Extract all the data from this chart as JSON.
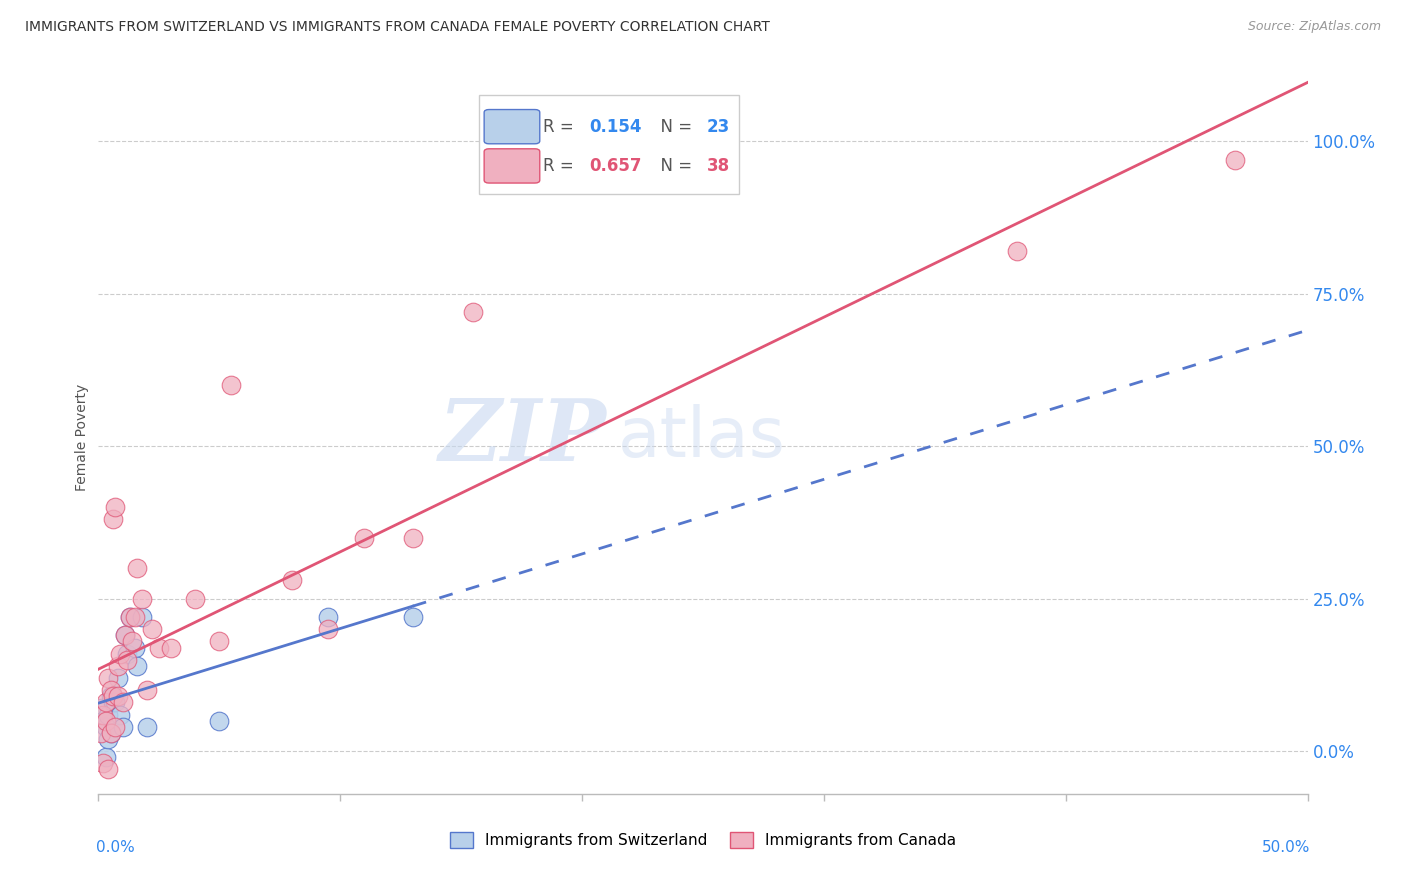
{
  "title": "IMMIGRANTS FROM SWITZERLAND VS IMMIGRANTS FROM CANADA FEMALE POVERTY CORRELATION CHART",
  "source": "Source: ZipAtlas.com",
  "ylabel": "Female Poverty",
  "ytick_labels": [
    "0.0%",
    "25.0%",
    "50.0%",
    "75.0%",
    "100.0%"
  ],
  "ytick_values": [
    0.0,
    0.25,
    0.5,
    0.75,
    1.0
  ],
  "xlim": [
    0.0,
    0.5
  ],
  "ylim": [
    -0.07,
    1.1
  ],
  "r_swiss": "0.154",
  "n_swiss": "23",
  "r_canada": "0.657",
  "n_canada": "38",
  "color_switzerland": "#b8d0ea",
  "color_canada": "#f0b0c0",
  "color_switzerland_line": "#5577cc",
  "color_canada_line": "#e05575",
  "watermark_zip": "ZIP",
  "watermark_atlas": "atlas",
  "legend_label_swiss": "Immigrants from Switzerland",
  "legend_label_canada": "Immigrants from Canada",
  "switzerland_x": [
    0.001,
    0.002,
    0.003,
    0.003,
    0.004,
    0.004,
    0.005,
    0.005,
    0.006,
    0.007,
    0.008,
    0.009,
    0.01,
    0.011,
    0.012,
    0.013,
    0.015,
    0.016,
    0.018,
    0.02,
    0.05,
    0.095,
    0.13
  ],
  "switzerland_y": [
    0.07,
    0.05,
    0.04,
    -0.01,
    0.02,
    0.06,
    0.09,
    0.03,
    0.08,
    0.08,
    0.12,
    0.06,
    0.04,
    0.19,
    0.16,
    0.22,
    0.17,
    0.14,
    0.22,
    0.04,
    0.05,
    0.22,
    0.22
  ],
  "canada_x": [
    0.001,
    0.002,
    0.002,
    0.003,
    0.003,
    0.004,
    0.004,
    0.005,
    0.005,
    0.006,
    0.006,
    0.007,
    0.007,
    0.008,
    0.008,
    0.009,
    0.01,
    0.011,
    0.012,
    0.013,
    0.014,
    0.015,
    0.016,
    0.018,
    0.02,
    0.022,
    0.025,
    0.03,
    0.04,
    0.05,
    0.055,
    0.08,
    0.095,
    0.11,
    0.13,
    0.155,
    0.38,
    0.47
  ],
  "canada_y": [
    0.03,
    0.06,
    -0.02,
    0.05,
    0.08,
    0.12,
    -0.03,
    0.1,
    0.03,
    0.38,
    0.09,
    0.4,
    0.04,
    0.14,
    0.09,
    0.16,
    0.08,
    0.19,
    0.15,
    0.22,
    0.18,
    0.22,
    0.3,
    0.25,
    0.1,
    0.2,
    0.17,
    0.17,
    0.25,
    0.18,
    0.6,
    0.28,
    0.2,
    0.35,
    0.35,
    0.72,
    0.82,
    0.97
  ],
  "xtick_positions": [
    0.0,
    0.1,
    0.2,
    0.3,
    0.4,
    0.5
  ]
}
